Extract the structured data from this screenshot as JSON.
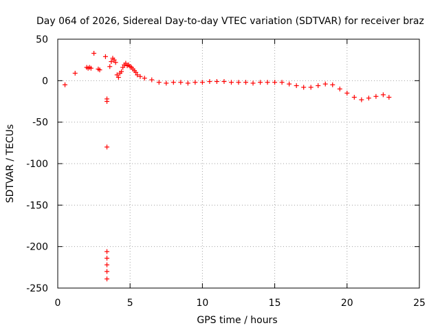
{
  "chart_data": {
    "type": "scatter",
    "title": "Day 064 of 2026, Sidereal Day-to-day VTEC variation (SDTVAR) for receiver braz",
    "xlabel": "GPS time / hours",
    "ylabel": "SDTVAR / TECUs",
    "xlim": [
      0,
      25
    ],
    "ylim": [
      -250,
      50
    ],
    "xticks": [
      0,
      5,
      10,
      15,
      20,
      25
    ],
    "yticks": [
      50,
      0,
      -50,
      -100,
      -150,
      -200,
      -250
    ],
    "grid": true,
    "marker": "+",
    "color": "#ff0000",
    "series": [
      {
        "name": "SDTVAR",
        "points": [
          [
            0.5,
            -5
          ],
          [
            1.2,
            9
          ],
          [
            2.0,
            16
          ],
          [
            2.1,
            15
          ],
          [
            2.2,
            16
          ],
          [
            2.3,
            15
          ],
          [
            2.5,
            33
          ],
          [
            2.8,
            14
          ],
          [
            2.9,
            13
          ],
          [
            3.3,
            29
          ],
          [
            3.4,
            -22
          ],
          [
            3.4,
            -25
          ],
          [
            3.4,
            -80
          ],
          [
            3.4,
            -206
          ],
          [
            3.4,
            -214
          ],
          [
            3.4,
            -222
          ],
          [
            3.4,
            -230
          ],
          [
            3.4,
            -239
          ],
          [
            3.6,
            17
          ],
          [
            3.7,
            23
          ],
          [
            3.8,
            27
          ],
          [
            3.9,
            25
          ],
          [
            4.0,
            22
          ],
          [
            4.1,
            7
          ],
          [
            4.2,
            4
          ],
          [
            4.3,
            9
          ],
          [
            4.4,
            11
          ],
          [
            4.5,
            16
          ],
          [
            4.6,
            19
          ],
          [
            4.7,
            21
          ],
          [
            4.8,
            18
          ],
          [
            4.9,
            19
          ],
          [
            5.0,
            17
          ],
          [
            5.1,
            16
          ],
          [
            5.2,
            14
          ],
          [
            5.3,
            12
          ],
          [
            5.4,
            10
          ],
          [
            5.5,
            7
          ],
          [
            5.7,
            5
          ],
          [
            6.0,
            3
          ],
          [
            6.5,
            1
          ],
          [
            7.0,
            -2
          ],
          [
            7.5,
            -3
          ],
          [
            8.0,
            -2
          ],
          [
            8.5,
            -2
          ],
          [
            9.0,
            -3
          ],
          [
            9.5,
            -2
          ],
          [
            10.0,
            -2
          ],
          [
            10.5,
            -1
          ],
          [
            11.0,
            -1
          ],
          [
            11.5,
            -1
          ],
          [
            12.0,
            -2
          ],
          [
            12.5,
            -2
          ],
          [
            13.0,
            -2
          ],
          [
            13.5,
            -3
          ],
          [
            14.0,
            -2
          ],
          [
            14.5,
            -2
          ],
          [
            15.0,
            -2
          ],
          [
            15.5,
            -2
          ],
          [
            16.0,
            -4
          ],
          [
            16.5,
            -6
          ],
          [
            17.0,
            -8
          ],
          [
            17.5,
            -8
          ],
          [
            18.0,
            -6
          ],
          [
            18.5,
            -4
          ],
          [
            19.0,
            -5
          ],
          [
            19.5,
            -10
          ],
          [
            20.0,
            -15
          ],
          [
            20.5,
            -20
          ],
          [
            21.0,
            -23
          ],
          [
            21.5,
            -21
          ],
          [
            22.0,
            -19
          ],
          [
            22.5,
            -17
          ],
          [
            22.9,
            -20
          ]
        ]
      }
    ]
  }
}
